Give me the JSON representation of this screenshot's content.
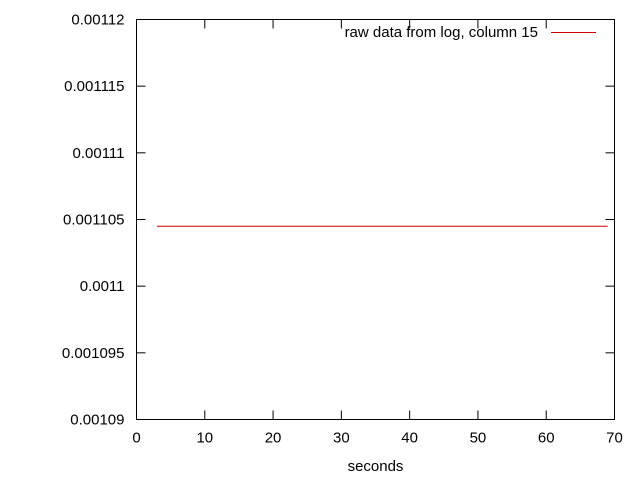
{
  "chart_data": {
    "type": "line",
    "title": "",
    "xlabel": "seconds",
    "ylabel": "",
    "xlim": [
      0,
      70
    ],
    "ylim": [
      0.00109,
      0.00112
    ],
    "x_ticks": [
      {
        "value": 0,
        "label": "0"
      },
      {
        "value": 10,
        "label": "10"
      },
      {
        "value": 20,
        "label": "20"
      },
      {
        "value": 30,
        "label": "30"
      },
      {
        "value": 40,
        "label": "40"
      },
      {
        "value": 50,
        "label": "50"
      },
      {
        "value": 60,
        "label": "60"
      },
      {
        "value": 70,
        "label": "70"
      }
    ],
    "y_ticks": [
      {
        "value": 0.00109,
        "label": "0.00109"
      },
      {
        "value": 0.001095,
        "label": "0.001095"
      },
      {
        "value": 0.0011,
        "label": "0.0011"
      },
      {
        "value": 0.001105,
        "label": "0.001105"
      },
      {
        "value": 0.00111,
        "label": "0.00111"
      },
      {
        "value": 0.001115,
        "label": "0.001115"
      },
      {
        "value": 0.00112,
        "label": "0.00112"
      }
    ],
    "grid": false,
    "legend_position": "top-right",
    "series": [
      {
        "name": "raw data from log, column 15",
        "color": "#cc0000",
        "x": [
          3,
          69
        ],
        "y": [
          0.0011045,
          0.0011045
        ]
      }
    ]
  }
}
